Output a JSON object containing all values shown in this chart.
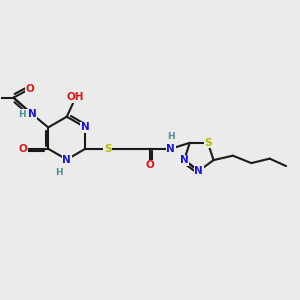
{
  "bg_color": "#ebebeb",
  "figsize": [
    3.0,
    3.0
  ],
  "dpi": 100,
  "bond_color": "#1a1a1a",
  "bond_lw": 1.5,
  "colors": {
    "N": "#1515e0",
    "O": "#e01515",
    "S": "#b8b800",
    "H": "#4a9090",
    "C": "#1a1a1a"
  },
  "font_size": 7.5,
  "font_size_small": 6.5
}
